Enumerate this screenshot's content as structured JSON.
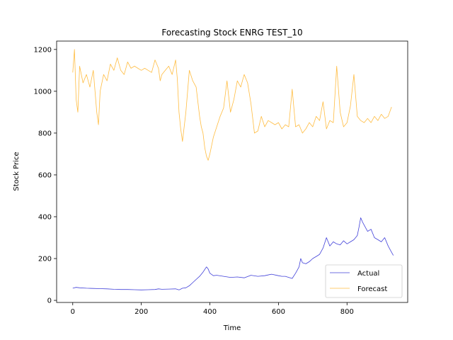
{
  "chart_data": {
    "type": "line",
    "title": "Forecasting Stock ENRG TEST_10",
    "xlabel": "Time",
    "ylabel": "Stock Price",
    "xlim": [
      -47,
      977
    ],
    "ylim": [
      -10,
      1240
    ],
    "xticks": [
      0,
      200,
      400,
      600,
      800
    ],
    "yticks": [
      0,
      200,
      400,
      600,
      800,
      1000,
      1200
    ],
    "grid": false,
    "legend_position": "lower-right",
    "series": [
      {
        "name": "Actual",
        "color": "#0000cc",
        "points": [
          [
            0,
            58
          ],
          [
            10,
            62
          ],
          [
            20,
            60
          ],
          [
            40,
            58
          ],
          [
            60,
            57
          ],
          [
            80,
            56
          ],
          [
            100,
            55
          ],
          [
            120,
            53
          ],
          [
            140,
            52
          ],
          [
            160,
            52
          ],
          [
            180,
            51
          ],
          [
            200,
            50
          ],
          [
            220,
            51
          ],
          [
            240,
            52
          ],
          [
            250,
            55
          ],
          [
            260,
            53
          ],
          [
            280,
            54
          ],
          [
            300,
            55
          ],
          [
            310,
            50
          ],
          [
            320,
            58
          ],
          [
            330,
            60
          ],
          [
            340,
            70
          ],
          [
            350,
            85
          ],
          [
            360,
            100
          ],
          [
            370,
            115
          ],
          [
            380,
            135
          ],
          [
            390,
            160
          ],
          [
            395,
            150
          ],
          [
            400,
            130
          ],
          [
            410,
            118
          ],
          [
            420,
            120
          ],
          [
            440,
            115
          ],
          [
            460,
            110
          ],
          [
            480,
            112
          ],
          [
            500,
            108
          ],
          [
            520,
            120
          ],
          [
            540,
            115
          ],
          [
            560,
            118
          ],
          [
            580,
            125
          ],
          [
            600,
            118
          ],
          [
            610,
            115
          ],
          [
            620,
            115
          ],
          [
            630,
            110
          ],
          [
            640,
            105
          ],
          [
            650,
            130
          ],
          [
            660,
            160
          ],
          [
            665,
            200
          ],
          [
            670,
            180
          ],
          [
            680,
            175
          ],
          [
            690,
            185
          ],
          [
            700,
            200
          ],
          [
            710,
            210
          ],
          [
            720,
            220
          ],
          [
            730,
            250
          ],
          [
            740,
            300
          ],
          [
            750,
            260
          ],
          [
            760,
            280
          ],
          [
            770,
            270
          ],
          [
            780,
            265
          ],
          [
            790,
            285
          ],
          [
            800,
            270
          ],
          [
            810,
            280
          ],
          [
            820,
            290
          ],
          [
            830,
            310
          ],
          [
            835,
            350
          ],
          [
            840,
            395
          ],
          [
            845,
            375
          ],
          [
            850,
            360
          ],
          [
            860,
            330
          ],
          [
            870,
            340
          ],
          [
            880,
            300
          ],
          [
            890,
            290
          ],
          [
            900,
            280
          ],
          [
            910,
            300
          ],
          [
            920,
            260
          ],
          [
            930,
            230
          ],
          [
            935,
            215
          ]
        ]
      },
      {
        "name": "Forecast",
        "color": "#ffa500",
        "points": [
          [
            0,
            1090
          ],
          [
            5,
            1200
          ],
          [
            10,
            960
          ],
          [
            15,
            900
          ],
          [
            20,
            1120
          ],
          [
            30,
            1040
          ],
          [
            40,
            1080
          ],
          [
            50,
            1020
          ],
          [
            60,
            1100
          ],
          [
            70,
            900
          ],
          [
            75,
            840
          ],
          [
            80,
            1000
          ],
          [
            90,
            1080
          ],
          [
            100,
            1050
          ],
          [
            110,
            1130
          ],
          [
            120,
            1100
          ],
          [
            130,
            1160
          ],
          [
            140,
            1100
          ],
          [
            150,
            1080
          ],
          [
            160,
            1140
          ],
          [
            170,
            1110
          ],
          [
            180,
            1120
          ],
          [
            190,
            1110
          ],
          [
            200,
            1100
          ],
          [
            210,
            1110
          ],
          [
            220,
            1100
          ],
          [
            230,
            1090
          ],
          [
            240,
            1150
          ],
          [
            250,
            1110
          ],
          [
            255,
            1050
          ],
          [
            260,
            1080
          ],
          [
            270,
            1100
          ],
          [
            280,
            1120
          ],
          [
            290,
            1080
          ],
          [
            300,
            1150
          ],
          [
            305,
            1060
          ],
          [
            310,
            900
          ],
          [
            315,
            820
          ],
          [
            320,
            760
          ],
          [
            330,
            900
          ],
          [
            340,
            1100
          ],
          [
            350,
            1050
          ],
          [
            360,
            1020
          ],
          [
            370,
            880
          ],
          [
            375,
            830
          ],
          [
            380,
            800
          ],
          [
            385,
            730
          ],
          [
            390,
            690
          ],
          [
            395,
            670
          ],
          [
            400,
            700
          ],
          [
            410,
            780
          ],
          [
            420,
            830
          ],
          [
            430,
            880
          ],
          [
            440,
            920
          ],
          [
            450,
            1050
          ],
          [
            460,
            900
          ],
          [
            470,
            960
          ],
          [
            480,
            1050
          ],
          [
            490,
            1020
          ],
          [
            500,
            1080
          ],
          [
            510,
            1040
          ],
          [
            520,
            940
          ],
          [
            530,
            800
          ],
          [
            540,
            810
          ],
          [
            550,
            880
          ],
          [
            560,
            830
          ],
          [
            570,
            860
          ],
          [
            580,
            850
          ],
          [
            590,
            840
          ],
          [
            600,
            850
          ],
          [
            610,
            820
          ],
          [
            620,
            840
          ],
          [
            630,
            830
          ],
          [
            640,
            1010
          ],
          [
            650,
            830
          ],
          [
            660,
            840
          ],
          [
            670,
            800
          ],
          [
            680,
            820
          ],
          [
            690,
            850
          ],
          [
            700,
            830
          ],
          [
            710,
            880
          ],
          [
            720,
            860
          ],
          [
            730,
            950
          ],
          [
            740,
            820
          ],
          [
            750,
            860
          ],
          [
            760,
            850
          ],
          [
            770,
            1120
          ],
          [
            780,
            900
          ],
          [
            790,
            830
          ],
          [
            800,
            850
          ],
          [
            810,
            930
          ],
          [
            820,
            1080
          ],
          [
            830,
            880
          ],
          [
            840,
            860
          ],
          [
            850,
            850
          ],
          [
            860,
            870
          ],
          [
            870,
            850
          ],
          [
            880,
            880
          ],
          [
            890,
            860
          ],
          [
            900,
            890
          ],
          [
            910,
            870
          ],
          [
            920,
            880
          ],
          [
            930,
            925
          ]
        ]
      }
    ]
  }
}
